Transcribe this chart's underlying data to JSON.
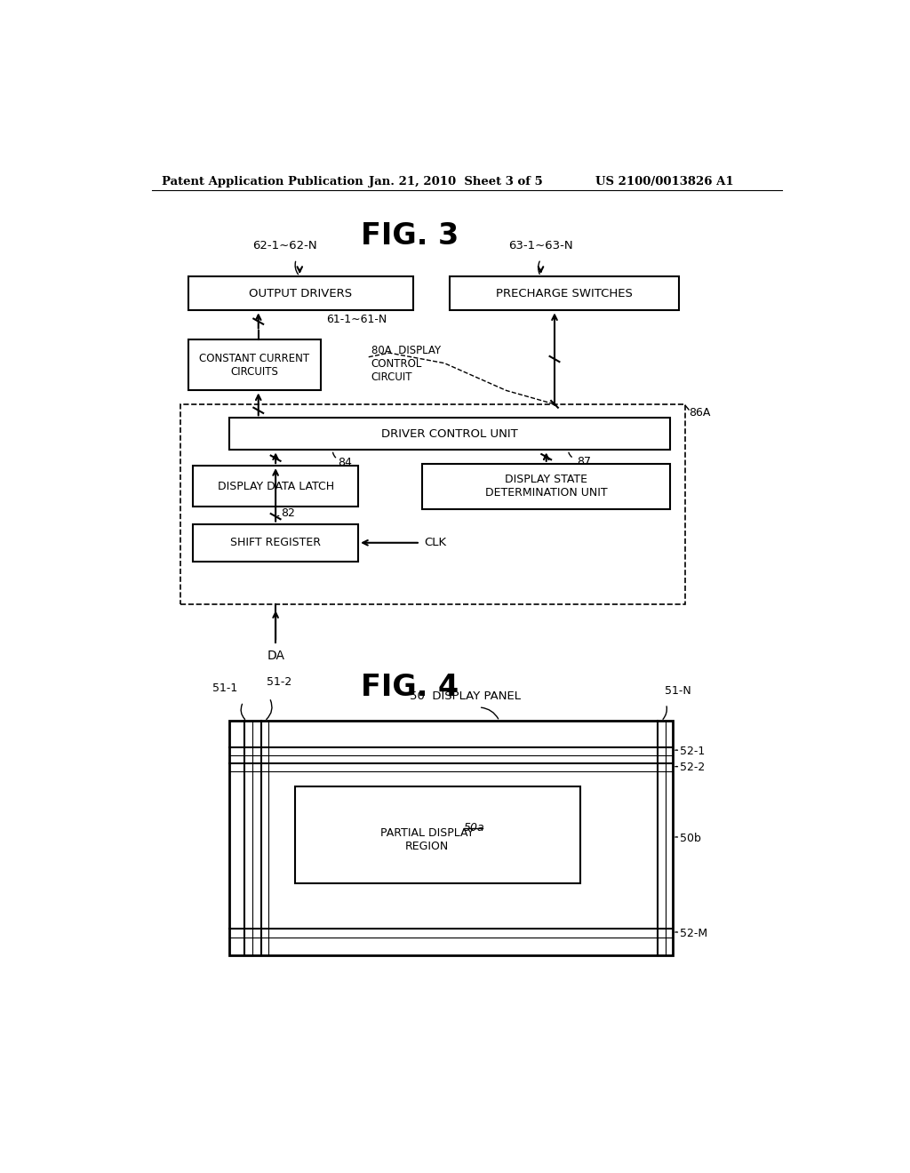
{
  "header_left": "Patent Application Publication",
  "header_center": "Jan. 21, 2010  Sheet 3 of 5",
  "header_right": "US 2100/0013826 A1",
  "fig3_title": "FIG. 3",
  "fig4_title": "FIG. 4",
  "bg_color": "#ffffff",
  "text_color": "#000000",
  "fig3": {
    "output_drivers_label": "OUTPUT DRIVERS",
    "precharge_switches_label": "PRECHARGE SWITCHES",
    "constant_current_label": "CONSTANT CURRENT\nCIRCUITS",
    "display_control_label": "80A  DISPLAY\nCONTROL\nCIRCUIT",
    "driver_control_label": "DRIVER CONTROL UNIT",
    "display_data_latch_label": "DISPLAY DATA LATCH",
    "display_state_label": "DISPLAY STATE\nDETERMINATION UNIT",
    "shift_register_label": "SHIFT REGISTER",
    "label_62": "62-1∼62-N",
    "label_63": "63-1∼63-N",
    "label_61": "61-1∼61-N",
    "label_86A": "86A",
    "label_84": "84",
    "label_87": "87",
    "label_82": "82",
    "label_CLK": "CLK",
    "label_DA": "DA"
  },
  "fig4": {
    "display_panel_label": "50  DISPLAY PANEL",
    "partial_display_label": "PARTIAL DISPLAY\nREGION",
    "partial_display_num": "50a",
    "label_51_1": "51-1",
    "label_51_2": "51-2",
    "label_51_N": "51-N",
    "label_52_1": "52-1",
    "label_52_2": "52-2",
    "label_50b": "50b",
    "label_52_M": "52-M"
  }
}
